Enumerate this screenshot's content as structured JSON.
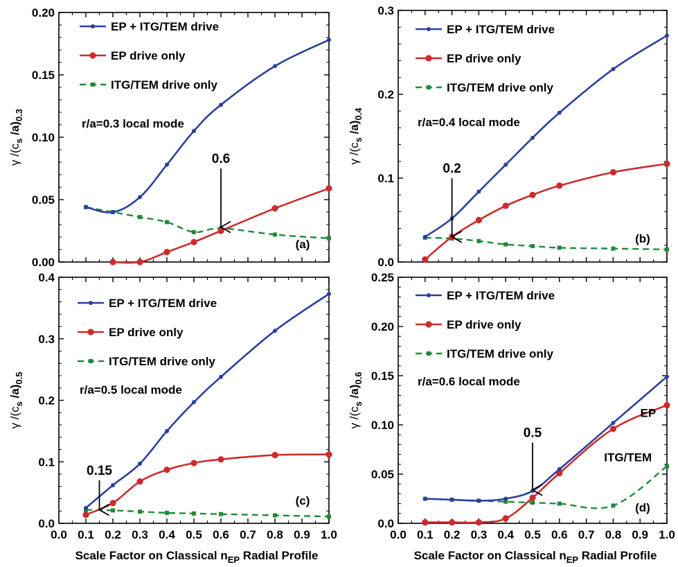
{
  "figure": {
    "xlabel_main": "Scale Factor on Classical n",
    "xlabel_sub": "EP",
    "xlabel_tail": " Radial Profile",
    "ylabel_gamma": "γ /(c",
    "ylabel_s": "s",
    "ylabel_a": " /a)"
  },
  "colors": {
    "ep_itg": "#2b3f9e",
    "ep_only": "#cc2b2b",
    "itg_only": "#1f8a3a"
  },
  "legend": {
    "ep_itg": "EP + ITG/TEM   drive",
    "ep_only": "EP  drive only",
    "itg_only": "ITG/TEM  drive only"
  },
  "chart_data": [
    {
      "type": "line",
      "panel_label": "(a)",
      "ylabel_subscript": "0.3",
      "mode_text": "r/a=0.3 local mode",
      "xlim": [
        0.0,
        1.0
      ],
      "ylim": [
        0.0,
        0.2
      ],
      "xticks": [
        "0.0",
        "0.1",
        "0.2",
        "0.3",
        "0.4",
        "0.5",
        "0.6",
        "0.7",
        "0.8",
        "0.9",
        "1.0"
      ],
      "yticks": [
        {
          "v": 0.0,
          "t": "0.00"
        },
        {
          "v": 0.05,
          "t": "0.05"
        },
        {
          "v": 0.1,
          "t": "0.10"
        },
        {
          "v": 0.15,
          "t": "0.15"
        },
        {
          "v": 0.2,
          "t": "0.20"
        }
      ],
      "show_xticklabels": false,
      "show_xlabel": false,
      "arrow": {
        "x": 0.6,
        "y_tip": 0.028,
        "y_tail": 0.075,
        "label": "0.6"
      },
      "extra_labels": [],
      "series": [
        {
          "key": "ep_itg",
          "x": [
            0.1,
            0.2,
            0.3,
            0.4,
            0.5,
            0.6,
            0.8,
            1.0
          ],
          "y": [
            0.044,
            0.04,
            0.052,
            0.078,
            0.105,
            0.126,
            0.157,
            0.178
          ]
        },
        {
          "key": "ep_only",
          "x": [
            0.2,
            0.3,
            0.4,
            0.5,
            0.6,
            0.8,
            1.0
          ],
          "y": [
            0.0,
            0.0,
            0.008,
            0.016,
            0.025,
            0.043,
            0.059
          ]
        },
        {
          "key": "itg_only",
          "x": [
            0.1,
            0.2,
            0.3,
            0.4,
            0.5,
            0.6,
            0.8,
            1.0
          ],
          "y": [
            0.044,
            0.04,
            0.036,
            0.032,
            0.024,
            0.027,
            0.022,
            0.019
          ]
        }
      ]
    },
    {
      "type": "line",
      "panel_label": "(b)",
      "ylabel_subscript": "0.4",
      "mode_text": "r/a=0.4 local mode",
      "xlim": [
        0.0,
        1.0
      ],
      "ylim": [
        0.0,
        0.3
      ],
      "xticks": [
        "0.0",
        "0.1",
        "0.2",
        "0.3",
        "0.4",
        "0.5",
        "0.6",
        "0.7",
        "0.8",
        "0.9",
        "1.0"
      ],
      "yticks": [
        {
          "v": 0.0,
          "t": "0.0"
        },
        {
          "v": 0.1,
          "t": "0.1"
        },
        {
          "v": 0.2,
          "t": "0.2"
        },
        {
          "v": 0.3,
          "t": "0.3"
        }
      ],
      "show_xticklabels": false,
      "show_xlabel": false,
      "arrow": {
        "x": 0.2,
        "y_tip": 0.03,
        "y_tail": 0.1,
        "label": "0.2"
      },
      "extra_labels": [],
      "series": [
        {
          "key": "ep_itg",
          "x": [
            0.1,
            0.2,
            0.3,
            0.4,
            0.5,
            0.6,
            0.8,
            1.0
          ],
          "y": [
            0.03,
            0.052,
            0.084,
            0.116,
            0.148,
            0.178,
            0.23,
            0.27
          ]
        },
        {
          "key": "ep_only",
          "x": [
            0.1,
            0.2,
            0.3,
            0.4,
            0.5,
            0.6,
            0.8,
            1.0
          ],
          "y": [
            0.003,
            0.03,
            0.05,
            0.067,
            0.08,
            0.091,
            0.107,
            0.117
          ]
        },
        {
          "key": "itg_only",
          "x": [
            0.1,
            0.2,
            0.3,
            0.4,
            0.5,
            0.6,
            0.8,
            1.0
          ],
          "y": [
            0.029,
            0.028,
            0.025,
            0.021,
            0.019,
            0.017,
            0.016,
            0.015
          ]
        }
      ]
    },
    {
      "type": "line",
      "panel_label": "(c)",
      "ylabel_subscript": "0.5",
      "mode_text": "r/a=0.5 local mode",
      "xlim": [
        0.0,
        1.0
      ],
      "ylim": [
        0.0,
        0.4
      ],
      "xticks": [
        "0.0",
        "0.1",
        "0.2",
        "0.3",
        "0.4",
        "0.5",
        "0.6",
        "0.7",
        "0.8",
        "0.9",
        "1.0"
      ],
      "yticks": [
        {
          "v": 0.0,
          "t": "0.0"
        },
        {
          "v": 0.1,
          "t": "0.1"
        },
        {
          "v": 0.2,
          "t": "0.2"
        },
        {
          "v": 0.3,
          "t": "0.3"
        },
        {
          "v": 0.4,
          "t": "0.4"
        }
      ],
      "show_xticklabels": true,
      "show_xlabel": true,
      "arrow": {
        "x": 0.15,
        "y_tip": 0.022,
        "y_tail": 0.07,
        "label": "0.15"
      },
      "extra_labels": [],
      "series": [
        {
          "key": "ep_itg",
          "x": [
            0.1,
            0.2,
            0.3,
            0.4,
            0.5,
            0.6,
            0.8,
            1.0
          ],
          "y": [
            0.025,
            0.062,
            0.097,
            0.15,
            0.197,
            0.238,
            0.313,
            0.373
          ]
        },
        {
          "key": "ep_only",
          "x": [
            0.1,
            0.2,
            0.3,
            0.4,
            0.5,
            0.6,
            0.8,
            1.0
          ],
          "y": [
            0.014,
            0.033,
            0.068,
            0.087,
            0.098,
            0.104,
            0.111,
            0.112
          ]
        },
        {
          "key": "itg_only",
          "x": [
            0.1,
            0.2,
            0.3,
            0.4,
            0.5,
            0.6,
            0.8,
            1.0
          ],
          "y": [
            0.022,
            0.021,
            0.019,
            0.017,
            0.016,
            0.015,
            0.013,
            0.011
          ]
        }
      ]
    },
    {
      "type": "line",
      "panel_label": "(d)",
      "ylabel_subscript": "0.6",
      "mode_text": "r/a=0.6 local mode",
      "xlim": [
        0.0,
        1.0
      ],
      "ylim": [
        0.0,
        0.25
      ],
      "xticks": [
        "0.0",
        "0.1",
        "0.2",
        "0.3",
        "0.4",
        "0.5",
        "0.6",
        "0.7",
        "0.8",
        "0.9",
        "1.0"
      ],
      "yticks": [
        {
          "v": 0.0,
          "t": "0.0"
        },
        {
          "v": 0.05,
          "t": "0.05"
        },
        {
          "v": 0.1,
          "t": "0.10"
        },
        {
          "v": 0.15,
          "t": "0.15"
        },
        {
          "v": 0.2,
          "t": "0.20"
        },
        {
          "v": 0.25,
          "t": "0.25"
        }
      ],
      "show_xticklabels": true,
      "show_xlabel": true,
      "arrow": {
        "x": 0.5,
        "y_tip": 0.034,
        "y_tail": 0.082,
        "label": "0.5"
      },
      "extra_labels": [
        {
          "text": "EP",
          "x": 0.93,
          "y": 0.108
        },
        {
          "text": "ITG/TEM",
          "x": 0.855,
          "y": 0.063
        }
      ],
      "series": [
        {
          "key": "ep_itg",
          "x": [
            0.1,
            0.2,
            0.3,
            0.4,
            0.5,
            0.6,
            0.8,
            1.0
          ],
          "y": [
            0.025,
            0.024,
            0.023,
            0.025,
            0.033,
            0.055,
            0.102,
            0.149
          ]
        },
        {
          "key": "ep_only",
          "x": [
            0.1,
            0.2,
            0.3,
            0.4,
            0.5,
            0.6,
            0.8,
            1.0
          ],
          "y": [
            0.001,
            0.001,
            0.001,
            0.005,
            0.026,
            0.051,
            0.096,
            0.12
          ]
        },
        {
          "key": "itg_only",
          "x": [
            0.1,
            0.2,
            0.3,
            0.4,
            0.5,
            0.6,
            0.8,
            1.0
          ],
          "y": [
            0.025,
            0.024,
            0.023,
            0.022,
            0.021,
            0.02,
            0.018,
            0.058
          ]
        }
      ]
    }
  ]
}
